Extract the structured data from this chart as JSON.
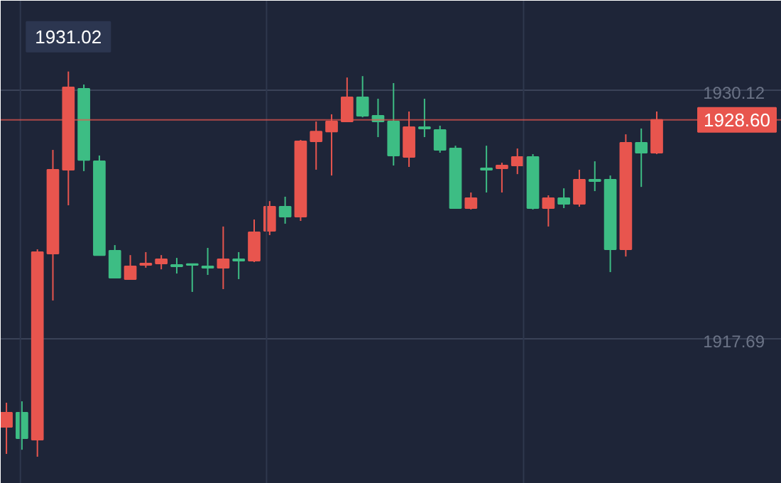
{
  "chart_data": {
    "type": "candlestick",
    "categories": [
      null,
      null,
      null,
      null,
      null,
      null,
      null,
      null,
      null,
      null,
      null,
      null,
      null,
      null,
      null,
      null,
      null,
      null,
      null,
      null,
      null,
      null,
      null,
      null,
      null,
      null,
      null,
      null,
      null,
      null,
      null,
      null,
      null,
      null,
      null,
      null,
      null,
      null,
      null,
      null,
      null,
      null,
      null
    ],
    "ohlc": [
      [
        1913.25,
        1914.46,
        1911.9,
        1913.96
      ],
      [
        1913.96,
        1914.53,
        1912.11,
        1912.68
      ],
      [
        1912.61,
        1922.13,
        1911.76,
        1921.99
      ],
      [
        1921.92,
        1927.1,
        1919.57,
        1926.11
      ],
      [
        1926.11,
        1931.02,
        1924.33,
        1930.23
      ],
      [
        1930.16,
        1930.37,
        1926.04,
        1926.6
      ],
      [
        1926.53,
        1926.82,
        1921.84,
        1921.84
      ],
      [
        1922.06,
        1922.34,
        1920.71,
        1920.71
      ],
      [
        1920.64,
        1921.84,
        1920.64,
        1921.28
      ],
      [
        1921.35,
        1921.99,
        1921.21,
        1921.42
      ],
      [
        1921.42,
        1921.84,
        1921.13,
        1921.63
      ],
      [
        1921.35,
        1921.7,
        1920.92,
        1921.28
      ],
      [
        1921.35,
        1921.42,
        1920.0,
        1921.35
      ],
      [
        1921.28,
        1922.2,
        1920.85,
        1921.21
      ],
      [
        1921.21,
        1923.27,
        1920.14,
        1921.63
      ],
      [
        1921.63,
        1921.99,
        1920.64,
        1921.56
      ],
      [
        1921.56,
        1923.62,
        1921.49,
        1922.98
      ],
      [
        1923.05,
        1924.54,
        1922.84,
        1924.26
      ],
      [
        1924.26,
        1924.76,
        1923.41,
        1923.76
      ],
      [
        1923.76,
        1927.6,
        1923.55,
        1927.53
      ],
      [
        1927.53,
        1928.52,
        1926.11,
        1928.02
      ],
      [
        1928.02,
        1928.88,
        1925.82,
        1928.52
      ],
      [
        1928.52,
        1930.72,
        1928.52,
        1929.73
      ],
      [
        1929.73,
        1930.79,
        1928.73,
        1928.81
      ],
      [
        1928.81,
        1929.66,
        1927.74,
        1928.52
      ],
      [
        1928.52,
        1930.44,
        1926.32,
        1926.82
      ],
      [
        1926.75,
        1929.02,
        1926.25,
        1928.24
      ],
      [
        1928.24,
        1929.66,
        1927.74,
        1928.17
      ],
      [
        1928.1,
        1928.31,
        1926.96,
        1927.1
      ],
      [
        1927.17,
        1927.31,
        1924.19,
        1924.19
      ],
      [
        1924.19,
        1924.97,
        1924.12,
        1924.69
      ],
      [
        1926.18,
        1927.31,
        1924.97,
        1926.11
      ],
      [
        1926.18,
        1926.46,
        1924.97,
        1926.32
      ],
      [
        1926.32,
        1927.17,
        1925.89,
        1926.75
      ],
      [
        1926.75,
        1926.89,
        1924.12,
        1924.19
      ],
      [
        1924.19,
        1924.83,
        1923.27,
        1924.69
      ],
      [
        1924.69,
        1925.18,
        1924.19,
        1924.4
      ],
      [
        1924.4,
        1926.11,
        1924.26,
        1925.61
      ],
      [
        1925.61,
        1926.53,
        1925.04,
        1925.54
      ],
      [
        1925.61,
        1925.82,
        1920.99,
        1922.13
      ],
      [
        1922.13,
        1927.88,
        1921.77,
        1927.46
      ],
      [
        1927.46,
        1928.17,
        1925.25,
        1926.96
      ],
      [
        1926.96,
        1929.02,
        1926.89,
        1928.6
      ]
    ],
    "colors": [
      "#e8554e",
      "#3dbd84",
      "#e8554e",
      "#e8554e",
      "#e8554e",
      "#3dbd84",
      "#3dbd84",
      "#3dbd84",
      "#e8554e",
      "#e8554e",
      "#e8554e",
      "#3dbd84",
      "#3dbd84",
      "#3dbd84",
      "#e8554e",
      "#3dbd84",
      "#e8554e",
      "#e8554e",
      "#3dbd84",
      "#e8554e",
      "#e8554e",
      "#e8554e",
      "#e8554e",
      "#3dbd84",
      "#3dbd84",
      "#3dbd84",
      "#e8554e",
      "#3dbd84",
      "#3dbd84",
      "#3dbd84",
      "#e8554e",
      "#3dbd84",
      "#e8554e",
      "#e8554e",
      "#3dbd84",
      "#e8554e",
      "#3dbd84",
      "#e8554e",
      "#3dbd84",
      "#3dbd84",
      "#e8554e",
      "#3dbd84",
      "#e8554e"
    ],
    "ylim": [
      1910.41,
      1934.56
    ],
    "yticks": [
      1930.12,
      1917.69
    ],
    "grid": "y",
    "ref_lines": [
      {
        "axis": "y",
        "value": 1928.6,
        "label": "1928.60",
        "color": "#e8554e"
      }
    ],
    "annotations": [
      {
        "text": "1931.02",
        "y": 1931.02
      }
    ]
  }
}
